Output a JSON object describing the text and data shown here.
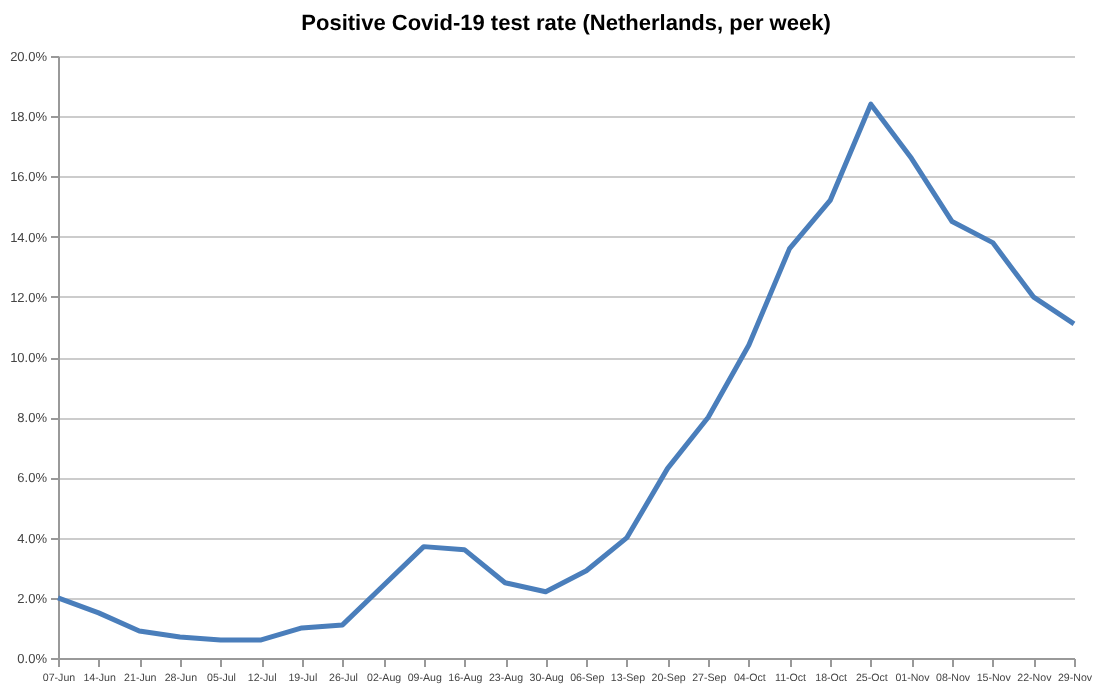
{
  "chart_data": {
    "type": "line",
    "title": "Positive Covid-19 test rate (Netherlands, per week)",
    "categories": [
      "07-Jun",
      "14-Jun",
      "21-Jun",
      "28-Jun",
      "05-Jul",
      "12-Jul",
      "19-Jul",
      "26-Jul",
      "02-Aug",
      "09-Aug",
      "16-Aug",
      "23-Aug",
      "30-Aug",
      "06-Sep",
      "13-Sep",
      "20-Sep",
      "27-Sep",
      "04-Oct",
      "11-Oct",
      "18-Oct",
      "25-Oct",
      "01-Nov",
      "08-Nov",
      "15-Nov",
      "22-Nov",
      "29-Nov"
    ],
    "series": [
      {
        "color": "#4a7ebb",
        "values": [
          2.0,
          1.5,
          0.9,
          0.7,
          0.6,
          0.6,
          1.0,
          1.1,
          2.4,
          3.7,
          3.6,
          2.5,
          2.2,
          2.9,
          4.0,
          6.3,
          8.0,
          10.4,
          13.6,
          15.2,
          18.4,
          16.6,
          14.5,
          13.8,
          12.0,
          11.1
        ]
      }
    ],
    "ylim": [
      0,
      20
    ],
    "yticks": [
      {
        "value": 0,
        "label": "0.0%"
      },
      {
        "value": 2,
        "label": "2.0%"
      },
      {
        "value": 4,
        "label": "4.0%"
      },
      {
        "value": 6,
        "label": "6.0%"
      },
      {
        "value": 8,
        "label": "8.0%"
      },
      {
        "value": 10,
        "label": "10.0%"
      },
      {
        "value": 12,
        "label": "12.0%"
      },
      {
        "value": 14,
        "label": "14.0%"
      },
      {
        "value": 16,
        "label": "16.0%"
      },
      {
        "value": 18,
        "label": "18.0%"
      },
      {
        "value": 20,
        "label": "20.0%"
      }
    ],
    "grid": "y",
    "legend": false,
    "marker": "none",
    "line_style": "solid"
  }
}
